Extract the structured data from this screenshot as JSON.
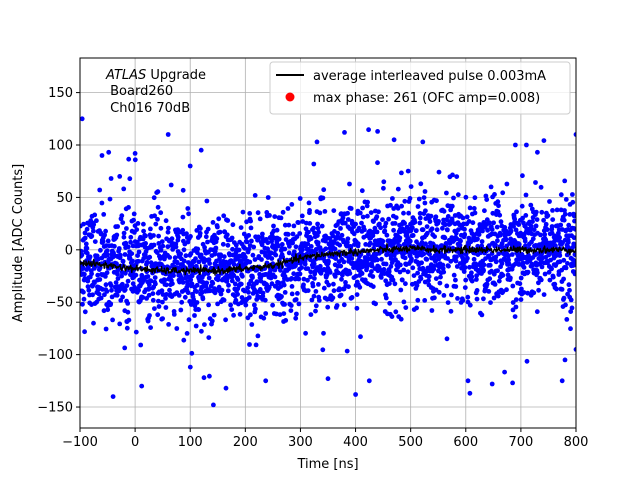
{
  "chart_data": {
    "type": "scatter",
    "title": "",
    "xlabel": "Time [ns]",
    "ylabel": "Amplitude [ADC Counts]",
    "xlim": [
      -100,
      800
    ],
    "ylim": [
      -170,
      183
    ],
    "x_ticks": [
      -100,
      0,
      100,
      200,
      300,
      400,
      500,
      600,
      700,
      800
    ],
    "y_ticks": [
      -150,
      -100,
      -50,
      0,
      50,
      100,
      150
    ],
    "grid": true,
    "legend_position": "top-right",
    "annotation": {
      "experiment": "ATLAS",
      "experiment_suffix": " Upgrade",
      "board": " Board260",
      "channel": " Ch016 70dB"
    },
    "series": [
      {
        "name": "average interleaved pulse 0.003mA",
        "kind": "line",
        "color": "#000000",
        "x": [
          -100,
          -50,
          0,
          50,
          100,
          150,
          200,
          250,
          300,
          350,
          400,
          450,
          500,
          550,
          600,
          650,
          700,
          750,
          800
        ],
        "y": [
          -12,
          -15,
          -18,
          -20,
          -20,
          -20,
          -18,
          -15,
          -8,
          -4,
          -2,
          0,
          1,
          0,
          0,
          0,
          0,
          0,
          0
        ]
      },
      {
        "name": "max phase: 261 (OFC amp=0.008)",
        "kind": "scatter",
        "color": "#0000ff",
        "legend_color": "#ff0000",
        "spread_sigma": 25,
        "highlight_points": [
          {
            "x": -60,
            "y": 90
          },
          {
            "x": -48,
            "y": 93
          },
          {
            "x": -28,
            "y": 70
          },
          {
            "x": 0,
            "y": 92
          },
          {
            "x": 60,
            "y": 110
          },
          {
            "x": 100,
            "y": 80
          },
          {
            "x": 120,
            "y": 95
          },
          {
            "x": 330,
            "y": 103
          },
          {
            "x": 380,
            "y": 112
          },
          {
            "x": 440,
            "y": 113
          },
          {
            "x": 470,
            "y": 105
          },
          {
            "x": 522,
            "y": 103
          },
          {
            "x": 690,
            "y": 100
          },
          {
            "x": 710,
            "y": 100
          },
          {
            "x": 730,
            "y": 93
          },
          {
            "x": 800,
            "y": 110
          },
          {
            "x": -96,
            "y": 125
          },
          {
            "x": -40,
            "y": -140
          },
          {
            "x": 12,
            "y": -130
          },
          {
            "x": 125,
            "y": -122
          },
          {
            "x": 142,
            "y": -148
          },
          {
            "x": 165,
            "y": -132
          },
          {
            "x": 237,
            "y": -125
          },
          {
            "x": 350,
            "y": -123
          },
          {
            "x": 400,
            "y": -138
          },
          {
            "x": 425,
            "y": -125
          },
          {
            "x": 604,
            "y": -125
          },
          {
            "x": 648,
            "y": -128
          },
          {
            "x": 685,
            "y": -127
          },
          {
            "x": 775,
            "y": -125
          },
          {
            "x": 780,
            "y": -105
          },
          {
            "x": 800,
            "y": -95
          }
        ]
      }
    ]
  }
}
